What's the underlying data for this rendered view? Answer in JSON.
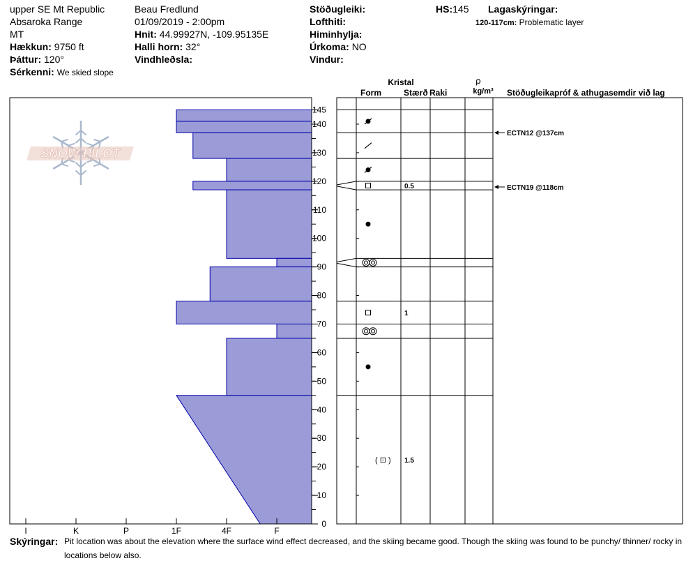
{
  "header": {
    "location": "upper SE Mt Republic",
    "range": "Absaroka Range",
    "state": "MT",
    "elevation_label": "Hækkun:",
    "elevation_value": "9750 ft",
    "aspect_label": "Þáttur:",
    "aspect_value": "120°",
    "specifics_label": "Sérkenni:",
    "specifics_value": "We skied slope",
    "observer": "Beau  Fredlund",
    "datetime": "01/09/2019 - 2:00pm",
    "coords_label": "Hnit:",
    "coords_value": "44.99927N, -109.95135E",
    "slope_label": "Halli horn:",
    "slope_value": "32°",
    "wind_loading_label": "Vindhleðsla:",
    "stability_label": "Stöðugleiki:",
    "air_temp_label": "Lofthiti:",
    "sky_label": "Himinhylja:",
    "precip_label": "Úrkoma:",
    "precip_value": "NO",
    "wind_label": "Vindur:",
    "hs_label": "HS:",
    "hs_value": "145",
    "legend_label": "Lagaskýringar:",
    "legend_range": "120-117cm:",
    "legend_text": "Problematic layer"
  },
  "columns": {
    "crystal": "Kristal",
    "form": "Form",
    "size": "Stærð",
    "moisture": "Raki",
    "rho": "ρ",
    "density_unit": "kg/m³",
    "tests_header": "Stöðugleikapróf & athugasemdir við lag"
  },
  "chart_data": {
    "type": "snow-profile",
    "hardness_scale": [
      "I",
      "K",
      "P",
      "1F",
      "4F",
      "F"
    ],
    "ylim": [
      0,
      145
    ],
    "yticks": [
      0,
      10,
      20,
      30,
      40,
      50,
      60,
      70,
      80,
      90,
      100,
      110,
      120,
      130,
      140,
      145
    ],
    "layers": [
      {
        "bottom": 141,
        "top": 145,
        "hardness": 3.0
      },
      {
        "bottom": 137,
        "top": 141,
        "hardness": 3.0
      },
      {
        "bottom": 128,
        "top": 137,
        "hardness": 3.33
      },
      {
        "bottom": 120,
        "top": 128,
        "hardness": 4.0
      },
      {
        "bottom": 117,
        "top": 120,
        "hardness": 3.33
      },
      {
        "bottom": 93,
        "top": 117,
        "hardness": 4.0
      },
      {
        "bottom": 90,
        "top": 93,
        "hardness": 5.0
      },
      {
        "bottom": 78,
        "top": 90,
        "hardness": 3.67
      },
      {
        "bottom": 70,
        "top": 78,
        "hardness": 3.0
      },
      {
        "bottom": 65,
        "top": 70,
        "hardness": 5.0
      },
      {
        "bottom": 45,
        "top": 65,
        "hardness": 4.0
      },
      {
        "bottom": 0,
        "top": 45,
        "hardness_top": 3.0,
        "hardness_bottom": 4.67
      }
    ],
    "layer_details": [
      {
        "mid": 141,
        "form": "decomposing",
        "size": ""
      },
      {
        "mid": 132.5,
        "form": "precipitation",
        "size": ""
      },
      {
        "mid": 124,
        "form": "decomposing",
        "size": ""
      },
      {
        "mid": 118.5,
        "form": "faceted",
        "size": "0.5"
      },
      {
        "mid": 105,
        "form": "rounded",
        "size": ""
      },
      {
        "mid": 91.5,
        "form": "melt",
        "size": ""
      },
      {
        "mid": 74,
        "form": "faceted",
        "size": "1"
      },
      {
        "mid": 67.5,
        "form": "melt",
        "size": ""
      },
      {
        "mid": 55,
        "form": "rounded",
        "size": ""
      },
      {
        "mid": 22.5,
        "form": "mixed-faceted",
        "size": "1.5"
      }
    ],
    "tests": [
      {
        "depth": 137,
        "label": "ECTN12 @137cm"
      },
      {
        "depth": 118,
        "label": "ECTN19 @118cm"
      }
    ]
  },
  "comments": {
    "label": "Skýringar:",
    "text": "Pit location was about the elevation where the surface wind effect decreased, and the skiing became good.  Though the skiing was found to be punchy/ thinner/ rocky in locations below also."
  },
  "logo": {
    "text": "SNOW PILOT"
  },
  "colors": {
    "layer_fill": "#9b9bd8",
    "layer_stroke": "#0000aa",
    "logo_text": "#e8c7bd",
    "logo_flake": "#aab8cc"
  }
}
